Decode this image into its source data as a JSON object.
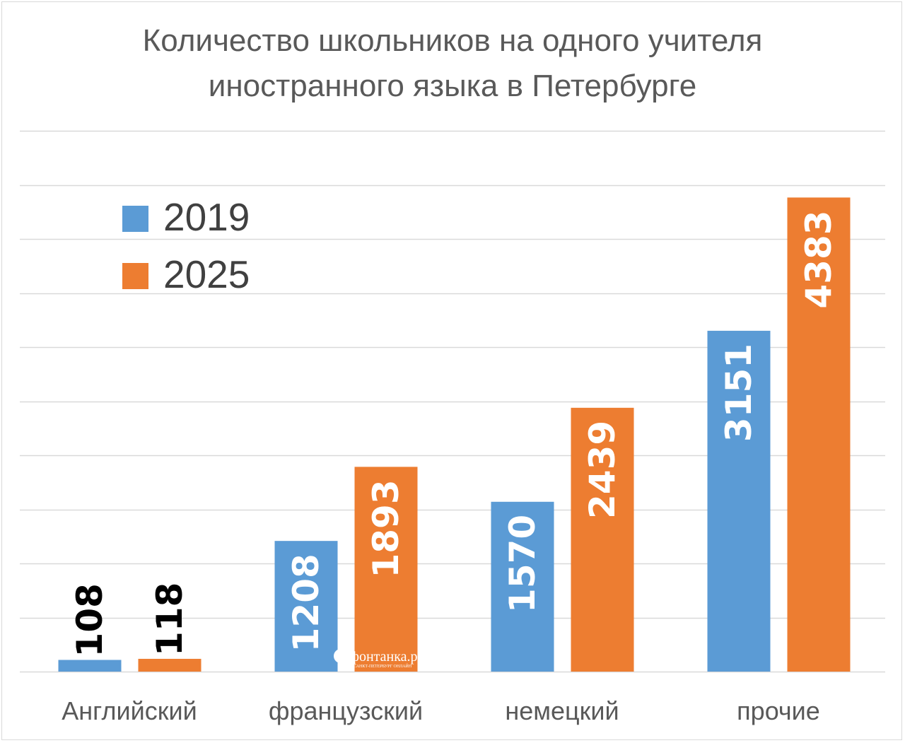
{
  "chart_data": {
    "type": "bar",
    "title": "Количество школьников на одного учителя иностранного языка в Петербурге",
    "title_lines": [
      "Количество школьников на одного учителя",
      "иностранного языка в Петербурге"
    ],
    "categories": [
      "Английский",
      "французский",
      "немецкий",
      "прочие"
    ],
    "series": [
      {
        "name": "2019",
        "values": [
          108,
          1208,
          1570,
          3151
        ],
        "color": "#5b9bd5"
      },
      {
        "name": "2025",
        "values": [
          118,
          1893,
          2439,
          4383
        ],
        "color": "#ed7d31"
      }
    ],
    "ylim": [
      0,
      5000
    ],
    "grid": true,
    "legend": "top-left",
    "xlabel": "",
    "ylabel": ""
  },
  "watermark": {
    "brand": "фонтанка.ру",
    "sub": "САНКТ-ПЕТЕРБУРГ ОНЛАЙН"
  },
  "colors": {
    "gridline": "#d9d9d9",
    "small_bar_label": "#000000",
    "large_bar_label": "#ffffff"
  }
}
